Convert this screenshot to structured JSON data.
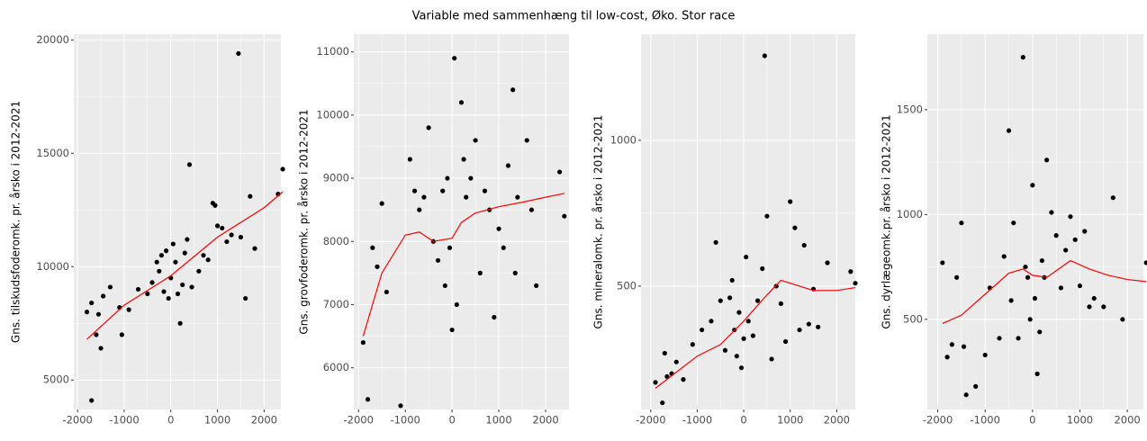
{
  "title": "Variable med sammenhæng til low-cost, Øko. Stor race",
  "chart_data": [
    {
      "type": "scatter",
      "ylabel": "Gns. tilskudsfoderomk. pr. årsko i 2012-2021",
      "color": "#000000",
      "grid": true,
      "xlim": [
        -2080,
        2360
      ],
      "ylim": [
        3700,
        20250
      ],
      "xticks": [
        -2000,
        -1000,
        0,
        1000,
        2000
      ],
      "yticks": [
        5000,
        10000,
        15000,
        20000
      ],
      "x": [
        -1700,
        -1800,
        -1700,
        -1600,
        -1550,
        -1500,
        -1450,
        -1300,
        -1100,
        -1050,
        -900,
        -700,
        -500,
        -400,
        -300,
        -250,
        -200,
        -150,
        -100,
        -50,
        0,
        50,
        100,
        150,
        200,
        250,
        300,
        350,
        400,
        450,
        600,
        700,
        800,
        900,
        950,
        1000,
        1100,
        1200,
        1300,
        1450,
        1500,
        1600,
        1700,
        1800,
        2300,
        2400
      ],
      "y": [
        4100,
        8000,
        8400,
        7000,
        7900,
        6400,
        8700,
        9100,
        8200,
        7000,
        8100,
        9000,
        8800,
        9300,
        10200,
        9800,
        10500,
        8900,
        10700,
        8600,
        9500,
        11000,
        10200,
        8800,
        7500,
        9200,
        10600,
        11200,
        14500,
        9100,
        9800,
        10500,
        10300,
        12800,
        12700,
        11800,
        11700,
        11100,
        11400,
        19400,
        11300,
        8600,
        13100,
        10800,
        13200,
        14300
      ],
      "smooth": {
        "color": "#ff0000",
        "x": [
          -1800,
          -1000,
          0,
          1000,
          2000,
          2400
        ],
        "y": [
          6800,
          8300,
          9600,
          11300,
          12600,
          13300
        ]
      }
    },
    {
      "type": "scatter",
      "ylabel": "Gns. grovfoderomk. pr. årsko i 2012-2021",
      "color": "#000000",
      "grid": true,
      "xlim": [
        -2100,
        2500
      ],
      "ylim": [
        5340,
        11280
      ],
      "xticks": [
        -2000,
        -1000,
        0,
        1000,
        2000
      ],
      "yticks": [
        6000,
        7000,
        8000,
        9000,
        10000,
        11000
      ],
      "x": [
        -1900,
        -1800,
        -1700,
        -1600,
        -1500,
        -1400,
        -1100,
        -900,
        -800,
        -700,
        -600,
        -500,
        -400,
        -300,
        -200,
        -150,
        -100,
        -50,
        0,
        50,
        100,
        200,
        250,
        300,
        400,
        500,
        600,
        700,
        800,
        900,
        1000,
        1100,
        1200,
        1300,
        1350,
        1400,
        1600,
        1700,
        1800,
        2300,
        2400
      ],
      "y": [
        6400,
        5500,
        7900,
        7600,
        8600,
        7200,
        5400,
        9300,
        8800,
        8500,
        8700,
        9800,
        8000,
        7700,
        8800,
        7300,
        9000,
        7900,
        6600,
        10900,
        7000,
        10200,
        9300,
        8700,
        9000,
        9600,
        7500,
        8800,
        8500,
        6800,
        8200,
        7900,
        9200,
        10400,
        7500,
        8700,
        9600,
        8500,
        7300,
        9100,
        8400
      ],
      "smooth": {
        "color": "#ff0000",
        "x": [
          -1900,
          -1500,
          -1000,
          -700,
          -400,
          0,
          200,
          500,
          1000,
          1500,
          2000,
          2400
        ],
        "y": [
          6500,
          7500,
          8100,
          8150,
          8000,
          8050,
          8300,
          8450,
          8550,
          8620,
          8700,
          8760
        ]
      }
    },
    {
      "type": "scatter",
      "ylabel": "Gns. mineralomk. pr. årsko i 2012-2021",
      "color": "#000000",
      "grid": true,
      "xlim": [
        -2210,
        2400
      ],
      "ylim": [
        77,
        1364
      ],
      "xticks": [
        -2000,
        -1000,
        0,
        1000,
        2000
      ],
      "yticks": [
        500,
        1000
      ],
      "x": [
        -1900,
        -1750,
        -1700,
        -1650,
        -1550,
        -1450,
        -1300,
        -1100,
        -900,
        -700,
        -600,
        -500,
        -400,
        -300,
        -250,
        -200,
        -150,
        -100,
        -50,
        0,
        50,
        100,
        200,
        300,
        400,
        450,
        500,
        600,
        700,
        800,
        900,
        1000,
        1100,
        1200,
        1300,
        1400,
        1500,
        1600,
        1800,
        2300,
        2400
      ],
      "y": [
        170,
        100,
        270,
        190,
        200,
        240,
        180,
        300,
        350,
        380,
        650,
        450,
        280,
        460,
        520,
        350,
        260,
        410,
        220,
        320,
        600,
        380,
        330,
        450,
        560,
        1290,
        740,
        250,
        500,
        440,
        310,
        790,
        700,
        350,
        640,
        370,
        490,
        360,
        580,
        550,
        510
      ],
      "smooth": {
        "color": "#ff0000",
        "x": [
          -1900,
          -1000,
          -500,
          0,
          500,
          800,
          1000,
          1500,
          2000,
          2400
        ],
        "y": [
          150,
          260,
          300,
          380,
          470,
          520,
          510,
          485,
          485,
          495
        ]
      }
    },
    {
      "type": "scatter",
      "ylabel": "Gns. dyrlægeomk.pr. årsko i 2012-2021",
      "color": "#000000",
      "grid": true,
      "xlim": [
        -2220,
        2340
      ],
      "ylim": [
        70,
        1860
      ],
      "xticks": [
        -2000,
        -1000,
        0,
        1000,
        2000
      ],
      "yticks": [
        500,
        1000,
        1500
      ],
      "x": [
        -1900,
        -1800,
        -1700,
        -1600,
        -1500,
        -1450,
        -1400,
        -1200,
        -1000,
        -900,
        -700,
        -600,
        -500,
        -450,
        -400,
        -300,
        -200,
        -150,
        -100,
        -50,
        0,
        50,
        100,
        150,
        200,
        250,
        300,
        400,
        500,
        600,
        700,
        800,
        900,
        1000,
        1100,
        1200,
        1300,
        1500,
        1700,
        1900,
        2400
      ],
      "y": [
        770,
        320,
        380,
        700,
        960,
        370,
        140,
        180,
        330,
        650,
        410,
        800,
        1400,
        590,
        960,
        410,
        1750,
        750,
        700,
        500,
        1140,
        600,
        240,
        440,
        780,
        700,
        1260,
        1010,
        900,
        650,
        830,
        990,
        880,
        660,
        920,
        560,
        600,
        560,
        1080,
        500,
        770
      ],
      "smooth": {
        "color": "#ff0000",
        "x": [
          -1900,
          -1500,
          -1000,
          -500,
          -200,
          0,
          300,
          800,
          1200,
          1600,
          2000,
          2400
        ],
        "y": [
          480,
          520,
          620,
          720,
          740,
          710,
          700,
          780,
          740,
          710,
          690,
          680
        ]
      }
    }
  ]
}
